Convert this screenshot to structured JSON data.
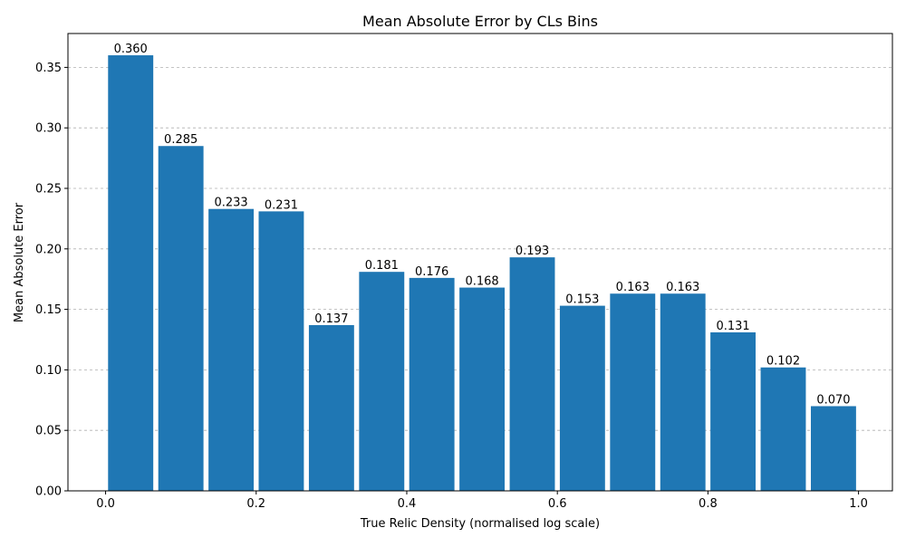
{
  "chart_data": {
    "type": "bar",
    "title": "Mean Absolute Error by CLs Bins",
    "xlabel": "True Relic Density (normalised log scale)",
    "ylabel": "Mean Absolute Error",
    "bar_color": "#1f77b4",
    "grid_color": "#b0b0b0",
    "grid": "y-dashed",
    "xlim": [
      -0.05,
      1.045
    ],
    "ylim": [
      0,
      0.378
    ],
    "xticks": [
      0.0,
      0.2,
      0.4,
      0.6,
      0.8,
      1.0
    ],
    "xtick_labels": [
      "0.0",
      "0.2",
      "0.4",
      "0.6",
      "0.8",
      "1.0"
    ],
    "yticks": [
      0.0,
      0.05,
      0.1,
      0.15,
      0.2,
      0.25,
      0.3,
      0.35
    ],
    "ytick_labels": [
      "0.00",
      "0.05",
      "0.10",
      "0.15",
      "0.20",
      "0.25",
      "0.30",
      "0.35"
    ],
    "bin_width": 0.0667,
    "bar_width_fraction": 0.9,
    "bins": [
      {
        "center": 0.0333,
        "value": 0.36,
        "label": "0.360"
      },
      {
        "center": 0.1,
        "value": 0.285,
        "label": "0.285"
      },
      {
        "center": 0.1667,
        "value": 0.233,
        "label": "0.233"
      },
      {
        "center": 0.2333,
        "value": 0.231,
        "label": "0.231"
      },
      {
        "center": 0.3,
        "value": 0.137,
        "label": "0.137"
      },
      {
        "center": 0.3667,
        "value": 0.181,
        "label": "0.181"
      },
      {
        "center": 0.4333,
        "value": 0.176,
        "label": "0.176"
      },
      {
        "center": 0.5,
        "value": 0.168,
        "label": "0.168"
      },
      {
        "center": 0.5667,
        "value": 0.193,
        "label": "0.193"
      },
      {
        "center": 0.6333,
        "value": 0.153,
        "label": "0.153"
      },
      {
        "center": 0.7,
        "value": 0.163,
        "label": "0.163"
      },
      {
        "center": 0.7667,
        "value": 0.163,
        "label": "0.163"
      },
      {
        "center": 0.8333,
        "value": 0.131,
        "label": "0.131"
      },
      {
        "center": 0.9,
        "value": 0.102,
        "label": "0.102"
      },
      {
        "center": 0.9667,
        "value": 0.07,
        "label": "0.070"
      }
    ]
  }
}
